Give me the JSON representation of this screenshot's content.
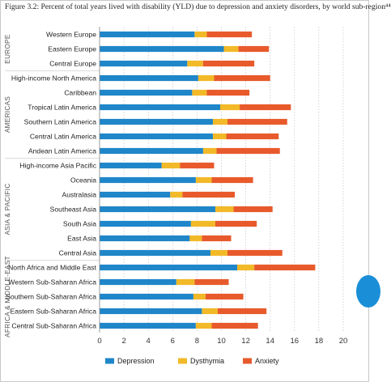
{
  "title": "Figure 3.2: Percent of total years lived with disability (YLD) due to depression and anxiety disorders, by world sub-region⁴⁴",
  "colors": {
    "Depression": "#1f86c9",
    "Dysthymia": "#f2b928",
    "Anxiety": "#e85a2b",
    "grid": "#b8b8b8",
    "separator": "#d0d0d0",
    "regionLabel": "#555555",
    "accent_circle": "#1a8fd8"
  },
  "chart_data": {
    "type": "bar",
    "orientation": "horizontal",
    "stacked": true,
    "xlim": [
      0,
      20
    ],
    "xticks": [
      0,
      2,
      4,
      6,
      8,
      10,
      12,
      14,
      16,
      18,
      20
    ],
    "grid": true,
    "legend_position": "bottom",
    "groups": [
      {
        "name": "EUROPE",
        "categories": [
          "Western Europe",
          "Eastern Europe",
          "Central Europe"
        ]
      },
      {
        "name": "AMERICAS",
        "categories": [
          "High-income North America",
          "Caribbean",
          "Tropical Latin America",
          "Southern Latin America",
          "Central Latin America",
          "Andean Latin America"
        ]
      },
      {
        "name": "ASIA & PACIFIC",
        "categories": [
          "High-income Asia Pacific",
          "Oceania",
          "Australasia",
          "Southeast Asia",
          "South Asia",
          "East Asia",
          "Central Asia"
        ]
      },
      {
        "name": "AFRICA & MIDDLE-EAST",
        "categories": [
          "North Africa and Middle East",
          "Western Sub-Saharan Africa",
          "Southern Sub-Saharan Africa",
          "Eastern Sub-Saharan Africa",
          "Central Sub-Saharan Africa"
        ]
      }
    ],
    "categories": [
      "Western Europe",
      "Eastern Europe",
      "Central Europe",
      "High-income North America",
      "Caribbean",
      "Tropical Latin America",
      "Southern Latin America",
      "Central Latin America",
      "Andean Latin America",
      "High-income Asia Pacific",
      "Oceania",
      "Australasia",
      "Southeast Asia",
      "South Asia",
      "East Asia",
      "Central Asia",
      "North Africa and Middle East",
      "Western Sub-Saharan Africa",
      "Southern Sub-Saharan Africa",
      "Eastern Sub-Saharan Africa",
      "Central Sub-Saharan Africa"
    ],
    "series": [
      {
        "name": "Depression",
        "values": [
          7.8,
          10.2,
          7.2,
          8.1,
          7.6,
          9.9,
          9.3,
          9.3,
          8.5,
          5.1,
          7.9,
          5.8,
          9.5,
          7.5,
          7.4,
          9.1,
          11.3,
          6.3,
          7.7,
          8.4,
          7.9
        ]
      },
      {
        "name": "Dysthymia",
        "values": [
          1.0,
          1.2,
          1.3,
          1.3,
          1.2,
          1.6,
          1.2,
          1.1,
          1.1,
          1.5,
          1.3,
          1.0,
          1.5,
          2.0,
          1.0,
          1.4,
          1.4,
          1.5,
          1.0,
          1.3,
          1.3
        ]
      },
      {
        "name": "Anxiety",
        "values": [
          3.7,
          2.5,
          4.2,
          4.6,
          3.5,
          4.2,
          4.9,
          4.3,
          5.2,
          2.8,
          3.4,
          4.3,
          3.2,
          3.4,
          2.4,
          4.5,
          5.0,
          2.8,
          3.1,
          4.0,
          3.8
        ]
      }
    ]
  }
}
